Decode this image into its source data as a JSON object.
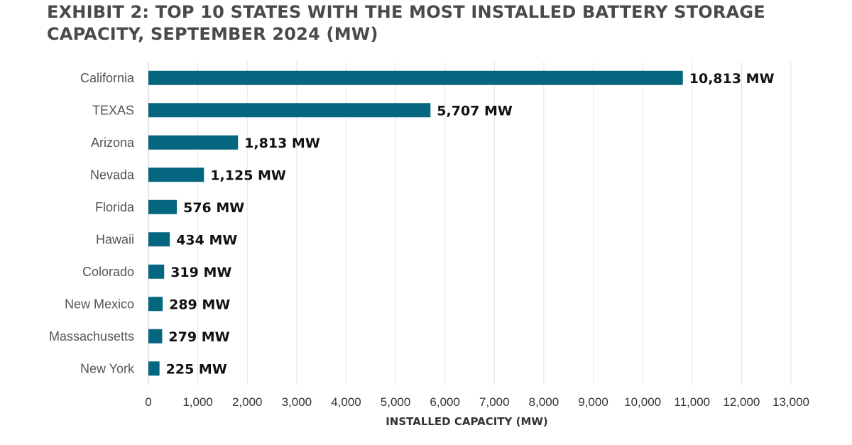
{
  "chart_data": {
    "type": "bar",
    "orientation": "horizontal",
    "title_lines": [
      "EXHIBIT 2: TOP 10 STATES WITH THE MOST INSTALLED BATTERY STORAGE",
      "CAPACITY, SEPTEMBER 2024 (MW)"
    ],
    "categories": [
      "California",
      "TEXAS",
      "Arizona",
      "Nevada",
      "Florida",
      "Hawaii",
      "Colorado",
      "New Mexico",
      "Massachusetts",
      "New York"
    ],
    "values": [
      10813,
      5707,
      1813,
      1125,
      576,
      434,
      319,
      289,
      279,
      225
    ],
    "data_labels": [
      "10,813 MW",
      "5,707 MW",
      "1,813 MW",
      "1,125 MW",
      "576 MW",
      "434 MW",
      "319 MW",
      "289 MW",
      "279 MW",
      "225 MW"
    ],
    "xlabel": "INSTALLED CAPACITY (MW)",
    "ylabel": "",
    "xlim": [
      0,
      13000
    ],
    "x_ticks": [
      0,
      1000,
      2000,
      3000,
      4000,
      5000,
      6000,
      7000,
      8000,
      9000,
      10000,
      11000,
      12000,
      13000
    ],
    "x_tick_labels": [
      "0",
      "1,000",
      "2,000",
      "3,000",
      "4,000",
      "5,000",
      "6,000",
      "7,000",
      "8,000",
      "9,000",
      "10,000",
      "11,000",
      "12,000",
      "13,000"
    ],
    "grid": true,
    "bar_color": "#05667f"
  }
}
